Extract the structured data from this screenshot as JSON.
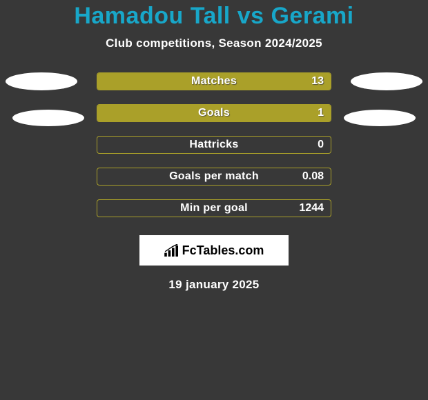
{
  "title": "Hamadou Tall vs Gerami",
  "subtitle": "Club competitions, Season 2024/2025",
  "colors": {
    "background": "#383838",
    "title": "#18a7c9",
    "bar_fill": "#aaa029",
    "bar_border": "#aaa029",
    "text": "#ffffff",
    "ellipse": "#ffffff",
    "logo_bg": "#ffffff",
    "logo_text": "#000000"
  },
  "stats": [
    {
      "label": "Matches",
      "value": "13",
      "fill_pct": 100
    },
    {
      "label": "Goals",
      "value": "1",
      "fill_pct": 100
    },
    {
      "label": "Hattricks",
      "value": "0",
      "fill_pct": 0
    },
    {
      "label": "Goals per match",
      "value": "0.08",
      "fill_pct": 0
    },
    {
      "label": "Min per goal",
      "value": "1244",
      "fill_pct": 0
    }
  ],
  "logo_text_left": "Fc",
  "logo_text_right": "Tables.com",
  "date": "19 january 2025"
}
